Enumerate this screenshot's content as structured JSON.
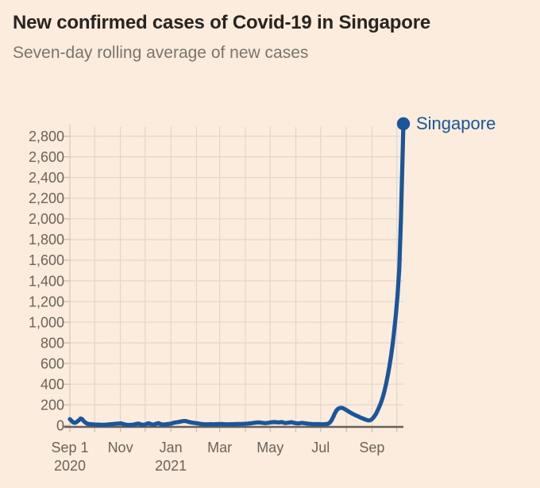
{
  "chart_data": {
    "type": "line",
    "title": "New confirmed cases of Covid-19 in Singapore",
    "subtitle": "Seven-day rolling average of new cases",
    "xlabel": "",
    "ylabel": "",
    "ylim": [
      0,
      2920
    ],
    "grid": true,
    "legend_position": "end-of-line",
    "yticks": [
      0,
      200,
      400,
      600,
      800,
      1000,
      1200,
      1400,
      1600,
      1800,
      2000,
      2200,
      2400,
      2600,
      2800
    ],
    "x_start_label": "Sep 1 2020",
    "x_range_days": [
      0,
      403
    ],
    "xticks": [
      {
        "label": "Sep 1",
        "sublabel": "2020",
        "day": 0
      },
      {
        "label": "Nov",
        "sublabel": "",
        "day": 61
      },
      {
        "label": "Jan",
        "sublabel": "2021",
        "day": 122
      },
      {
        "label": "Mar",
        "sublabel": "",
        "day": 181
      },
      {
        "label": "May",
        "sublabel": "",
        "day": 242
      },
      {
        "label": "Jul",
        "sublabel": "",
        "day": 303
      },
      {
        "label": "Sep",
        "sublabel": "",
        "day": 365
      }
    ],
    "xtick_marks_days": [
      0,
      30,
      61,
      91,
      122,
      153,
      181,
      212,
      242,
      273,
      303,
      334,
      365,
      395
    ],
    "month_gridline_days": [
      30,
      61,
      91,
      122,
      153,
      181,
      212,
      242,
      273,
      303,
      334,
      365,
      395
    ],
    "end_label": {
      "text": "Singapore",
      "marker": "dot",
      "value": 2920
    },
    "series": [
      {
        "name": "Singapore",
        "points": [
          [
            0,
            62
          ],
          [
            2,
            45
          ],
          [
            4,
            31
          ],
          [
            6,
            26
          ],
          [
            8,
            34
          ],
          [
            11,
            52
          ],
          [
            13,
            68
          ],
          [
            15,
            61
          ],
          [
            17,
            41
          ],
          [
            19,
            28
          ],
          [
            21,
            18
          ],
          [
            24,
            14
          ],
          [
            27,
            12
          ],
          [
            30,
            10
          ],
          [
            34,
            9
          ],
          [
            38,
            8
          ],
          [
            42,
            8
          ],
          [
            46,
            10
          ],
          [
            50,
            13
          ],
          [
            54,
            16
          ],
          [
            58,
            19
          ],
          [
            62,
            21
          ],
          [
            65,
            13
          ],
          [
            68,
            8
          ],
          [
            71,
            6
          ],
          [
            74,
            6
          ],
          [
            77,
            9
          ],
          [
            80,
            15
          ],
          [
            83,
            19
          ],
          [
            86,
            11
          ],
          [
            89,
            7
          ],
          [
            92,
            13
          ],
          [
            95,
            22
          ],
          [
            98,
            14
          ],
          [
            101,
            8
          ],
          [
            104,
            17
          ],
          [
            107,
            24
          ],
          [
            110,
            13
          ],
          [
            113,
            9
          ],
          [
            116,
            12
          ],
          [
            119,
            15
          ],
          [
            122,
            18
          ],
          [
            125,
            26
          ],
          [
            128,
            31
          ],
          [
            131,
            34
          ],
          [
            134,
            39
          ],
          [
            137,
            43
          ],
          [
            140,
            44
          ],
          [
            143,
            37
          ],
          [
            146,
            31
          ],
          [
            149,
            27
          ],
          [
            152,
            24
          ],
          [
            155,
            20
          ],
          [
            158,
            16
          ],
          [
            161,
            13
          ],
          [
            164,
            12
          ],
          [
            167,
            12
          ],
          [
            170,
            13
          ],
          [
            173,
            12
          ],
          [
            176,
            13
          ],
          [
            179,
            14
          ],
          [
            183,
            15
          ],
          [
            187,
            13
          ],
          [
            191,
            12
          ],
          [
            195,
            13
          ],
          [
            199,
            14
          ],
          [
            203,
            15
          ],
          [
            207,
            15
          ],
          [
            211,
            17
          ],
          [
            215,
            19
          ],
          [
            219,
            22
          ],
          [
            224,
            28
          ],
          [
            228,
            31
          ],
          [
            232,
            27
          ],
          [
            236,
            23
          ],
          [
            240,
            27
          ],
          [
            244,
            32
          ],
          [
            248,
            34
          ],
          [
            252,
            30
          ],
          [
            256,
            34
          ],
          [
            260,
            24
          ],
          [
            264,
            28
          ],
          [
            268,
            32
          ],
          [
            272,
            24
          ],
          [
            276,
            20
          ],
          [
            280,
            26
          ],
          [
            284,
            22
          ],
          [
            288,
            18
          ],
          [
            292,
            15
          ],
          [
            296,
            14
          ],
          [
            300,
            14
          ],
          [
            304,
            12
          ],
          [
            308,
            13
          ],
          [
            310,
            15
          ],
          [
            312,
            18
          ],
          [
            314,
            28
          ],
          [
            316,
            48
          ],
          [
            318,
            80
          ],
          [
            320,
            115
          ],
          [
            322,
            145
          ],
          [
            324,
            162
          ],
          [
            326,
            170
          ],
          [
            328,
            172
          ],
          [
            330,
            168
          ],
          [
            333,
            155
          ],
          [
            336,
            140
          ],
          [
            339,
            125
          ],
          [
            342,
            112
          ],
          [
            345,
            100
          ],
          [
            348,
            90
          ],
          [
            351,
            78
          ],
          [
            354,
            68
          ],
          [
            357,
            58
          ],
          [
            360,
            51
          ],
          [
            362,
            50
          ],
          [
            364,
            56
          ],
          [
            366,
            70
          ],
          [
            368,
            90
          ],
          [
            370,
            115
          ],
          [
            372,
            148
          ],
          [
            374,
            185
          ],
          [
            376,
            225
          ],
          [
            378,
            272
          ],
          [
            380,
            330
          ],
          [
            382,
            400
          ],
          [
            384,
            480
          ],
          [
            386,
            570
          ],
          [
            388,
            672
          ],
          [
            390,
            790
          ],
          [
            392,
            925
          ],
          [
            394,
            1080
          ],
          [
            396,
            1270
          ],
          [
            398,
            1520
          ],
          [
            399,
            1750
          ],
          [
            400,
            2000
          ],
          [
            401,
            2300
          ],
          [
            402,
            2620
          ],
          [
            403,
            2920
          ]
        ]
      }
    ]
  },
  "colors": {
    "background": "#fbecdd",
    "line": "#1a5699",
    "end_label_text": "#1a5699",
    "grid": "#e6d5c6",
    "axis_line": "#ddcbbb",
    "tick_mark": "#c9b8a8",
    "baseline": "#66605c",
    "tick_text": "#6b6359",
    "title_text": "#29241f",
    "subtitle_text": "#7b746c"
  }
}
